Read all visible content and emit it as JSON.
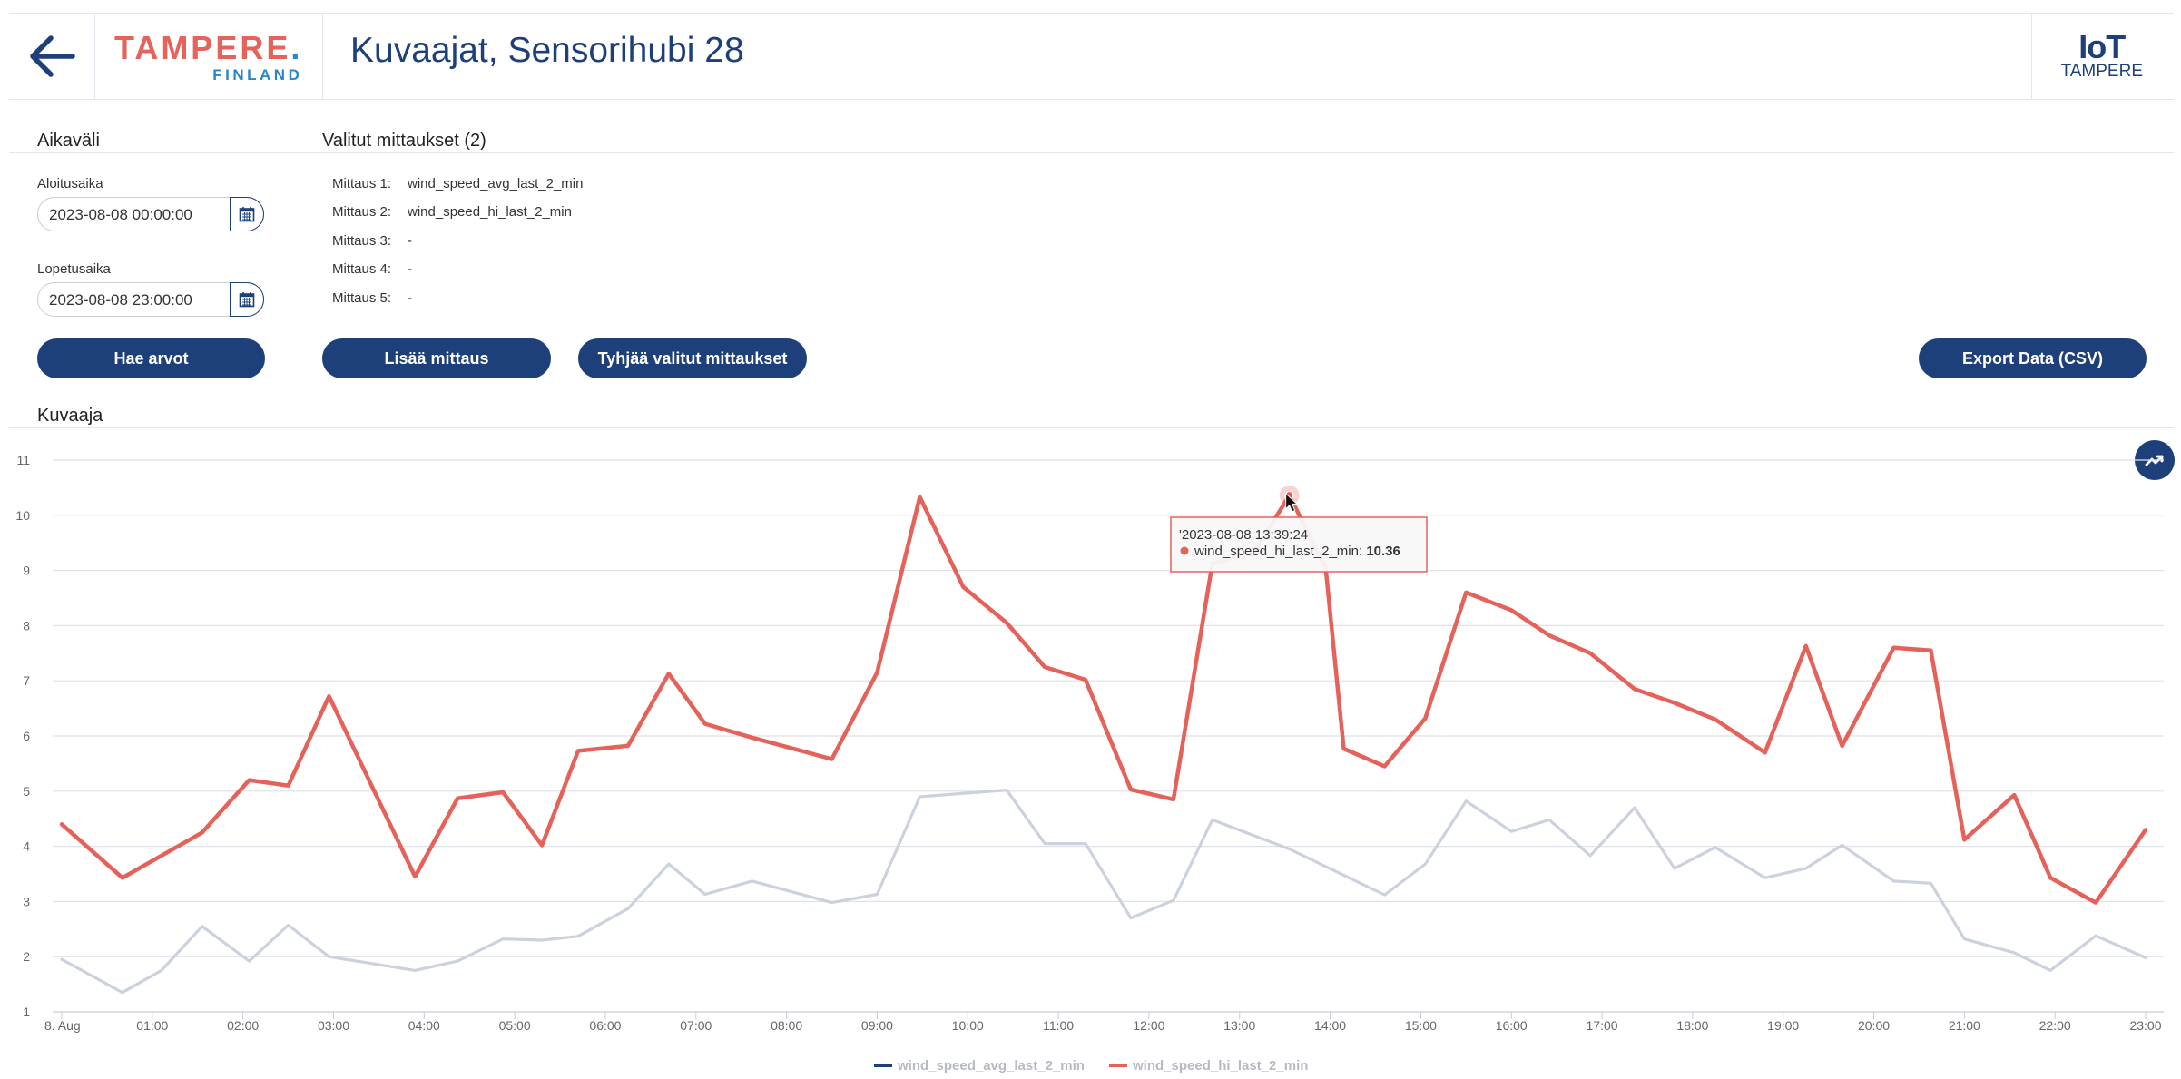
{
  "header": {
    "back_icon": "arrow-left-icon",
    "logo_main": "TAMPERE",
    "logo_dot": ".",
    "logo_sub": "FINLAND",
    "title": "Kuvaajat, Sensorihubi 28",
    "iot_logo_top": "IoT",
    "iot_logo_bottom": "TAMPERE"
  },
  "aikavali": {
    "heading": "Aikaväli",
    "start_label": "Aloitusaika",
    "start_value": "2023-08-08 00:00:00",
    "end_label": "Lopetusaika",
    "end_value": "2023-08-08 23:00:00",
    "calendar_icon": "calendar-icon",
    "fetch_button": "Hae arvot"
  },
  "measurements": {
    "heading": "Valitut mittaukset (2)",
    "items": [
      {
        "label": "Mittaus 1:",
        "value": "wind_speed_avg_last_2_min"
      },
      {
        "label": "Mittaus 2:",
        "value": "wind_speed_hi_last_2_min"
      },
      {
        "label": "Mittaus 3:",
        "value": "-"
      },
      {
        "label": "Mittaus 4:",
        "value": "-"
      },
      {
        "label": "Mittaus 5:",
        "value": "-"
      }
    ],
    "add_button": "Lisää mittaus",
    "clear_button": "Tyhjää valitut mittaukset",
    "export_button": "Export Data (CSV)"
  },
  "chart_section": {
    "heading": "Kuvaaja",
    "toggle_icon": "trend-line-icon"
  },
  "chart_data": {
    "type": "line",
    "ylim": [
      1,
      11
    ],
    "yticks": [
      1,
      2,
      3,
      4,
      5,
      6,
      7,
      8,
      9,
      10,
      11
    ],
    "xlim": [
      0,
      23
    ],
    "xticks": [
      {
        "x": 0,
        "label": "8. Aug"
      },
      {
        "x": 1,
        "label": "01:00"
      },
      {
        "x": 2,
        "label": "02:00"
      },
      {
        "x": 3,
        "label": "03:00"
      },
      {
        "x": 4,
        "label": "04:00"
      },
      {
        "x": 5,
        "label": "05:00"
      },
      {
        "x": 6,
        "label": "06:00"
      },
      {
        "x": 7,
        "label": "07:00"
      },
      {
        "x": 8,
        "label": "08:00"
      },
      {
        "x": 9,
        "label": "09:00"
      },
      {
        "x": 10,
        "label": "10:00"
      },
      {
        "x": 11,
        "label": "11:00"
      },
      {
        "x": 12,
        "label": "12:00"
      },
      {
        "x": 13,
        "label": "13:00"
      },
      {
        "x": 14,
        "label": "14:00"
      },
      {
        "x": 15,
        "label": "15:00"
      },
      {
        "x": 16,
        "label": "16:00"
      },
      {
        "x": 17,
        "label": "17:00"
      },
      {
        "x": 18,
        "label": "18:00"
      },
      {
        "x": 19,
        "label": "19:00"
      },
      {
        "x": 20,
        "label": "20:00"
      },
      {
        "x": 21,
        "label": "21:00"
      },
      {
        "x": 22,
        "label": "22:00"
      },
      {
        "x": 23,
        "label": "23:00"
      }
    ],
    "grid": true,
    "legend": "bottom-center",
    "series": [
      {
        "name": "wind_speed_avg_last_2_min",
        "color": "#ccd1de",
        "legend_color": "#1d3f7a",
        "points": [
          [
            0,
            1.95
          ],
          [
            0.67,
            1.35
          ],
          [
            1.1,
            1.75
          ],
          [
            1.55,
            2.55
          ],
          [
            2.07,
            1.92
          ],
          [
            2.5,
            2.57
          ],
          [
            2.95,
            2.0
          ],
          [
            3.9,
            1.75
          ],
          [
            4.37,
            1.92
          ],
          [
            4.87,
            2.32
          ],
          [
            5.3,
            2.3
          ],
          [
            5.7,
            2.37
          ],
          [
            6.25,
            2.87
          ],
          [
            6.7,
            3.68
          ],
          [
            7.1,
            3.13
          ],
          [
            7.62,
            3.37
          ],
          [
            8.5,
            2.98
          ],
          [
            9.0,
            3.13
          ],
          [
            9.47,
            4.9
          ],
          [
            10.43,
            5.02
          ],
          [
            10.85,
            4.05
          ],
          [
            11.3,
            4.05
          ],
          [
            11.8,
            2.7
          ],
          [
            12.27,
            3.02
          ],
          [
            12.7,
            4.48
          ],
          [
            13.55,
            3.95
          ],
          [
            14.6,
            3.12
          ],
          [
            15.05,
            3.68
          ],
          [
            15.5,
            4.82
          ],
          [
            16.0,
            4.27
          ],
          [
            16.42,
            4.48
          ],
          [
            16.87,
            3.83
          ],
          [
            17.36,
            4.7
          ],
          [
            17.8,
            3.6
          ],
          [
            18.25,
            3.98
          ],
          [
            18.8,
            3.43
          ],
          [
            19.25,
            3.6
          ],
          [
            19.65,
            4.02
          ],
          [
            20.22,
            3.37
          ],
          [
            20.63,
            3.33
          ],
          [
            21.0,
            2.32
          ],
          [
            21.55,
            2.07
          ],
          [
            21.95,
            1.75
          ],
          [
            22.45,
            2.38
          ],
          [
            23.0,
            1.98
          ]
        ]
      },
      {
        "name": "wind_speed_hi_last_2_min",
        "color": "#e5625a",
        "legend_color": "#e5625a",
        "points": [
          [
            0,
            4.4
          ],
          [
            0.67,
            3.43
          ],
          [
            1.55,
            4.25
          ],
          [
            2.07,
            5.2
          ],
          [
            2.5,
            5.1
          ],
          [
            2.95,
            6.72
          ],
          [
            3.9,
            3.45
          ],
          [
            4.37,
            4.87
          ],
          [
            4.87,
            4.98
          ],
          [
            5.3,
            4.02
          ],
          [
            5.7,
            5.73
          ],
          [
            6.25,
            5.82
          ],
          [
            6.7,
            7.13
          ],
          [
            7.1,
            6.22
          ],
          [
            7.62,
            5.97
          ],
          [
            8.5,
            5.58
          ],
          [
            9.0,
            7.15
          ],
          [
            9.47,
            10.33
          ],
          [
            9.95,
            8.7
          ],
          [
            10.43,
            8.05
          ],
          [
            10.85,
            7.25
          ],
          [
            11.3,
            7.02
          ],
          [
            11.8,
            5.03
          ],
          [
            12.27,
            4.85
          ],
          [
            12.7,
            9.13
          ],
          [
            13.15,
            9.3
          ],
          [
            13.55,
            10.36
          ],
          [
            13.95,
            9.05
          ],
          [
            14.15,
            5.77
          ],
          [
            14.6,
            5.45
          ],
          [
            15.05,
            6.32
          ],
          [
            15.5,
            8.6
          ],
          [
            16.0,
            8.28
          ],
          [
            16.42,
            7.82
          ],
          [
            16.87,
            7.5
          ],
          [
            17.36,
            6.85
          ],
          [
            17.8,
            6.6
          ],
          [
            18.25,
            6.3
          ],
          [
            18.8,
            5.7
          ],
          [
            19.25,
            7.63
          ],
          [
            19.65,
            5.82
          ],
          [
            20.22,
            7.6
          ],
          [
            20.63,
            7.55
          ],
          [
            21.0,
            4.12
          ],
          [
            21.55,
            4.93
          ],
          [
            21.95,
            3.43
          ],
          [
            22.45,
            2.98
          ],
          [
            23.0,
            4.3
          ]
        ]
      }
    ],
    "tooltip": {
      "timestamp": "'2023-08-08 13:39:24",
      "series": "wind_speed_hi_last_2_min",
      "value": "10.36",
      "x": 13.55,
      "y": 10.36
    }
  }
}
